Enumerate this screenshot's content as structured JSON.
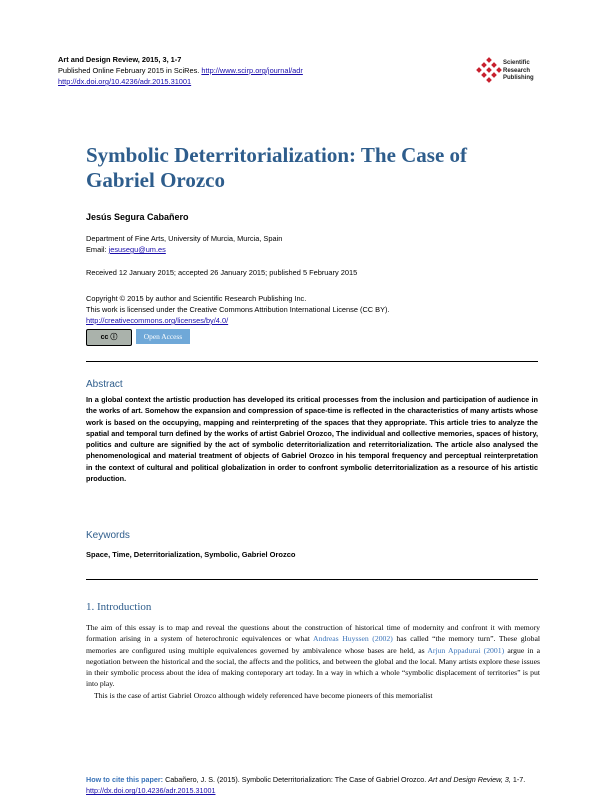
{
  "header": {
    "journal": "Art and Design Review, 2015, 3, 1-7",
    "published": "Published Online February 2015 in SciRes.",
    "journal_url": "http://www.scirp.org/journal/adr",
    "doi_url": "http://dx.doi.org/10.4236/adr.2015.31001"
  },
  "logo": {
    "line1": "Scientific",
    "line2": "Research",
    "line3": "Publishing",
    "color": "#c8202e"
  },
  "title_line1": "Symbolic Deterritorialization: The Case of",
  "title_line2": "Gabriel Orozco",
  "author": "Jesús Segura Cabañero",
  "affiliation": "Department of Fine Arts, University of Murcia, Murcia, Spain",
  "email_label": "Email:",
  "email": "jesusegu@um.es",
  "dates": "Received 12 January 2015; accepted 26 January 2015; published 5 February 2015",
  "copyright": {
    "line1": "Copyright © 2015 by author and Scientific Research Publishing Inc.",
    "line2": "This work is licensed under the Creative Commons Attribution International License (CC BY).",
    "url": "http://creativecommons.org/licenses/by/4.0/"
  },
  "badges": {
    "cc": "cc  ⓘ",
    "open_access": "Open Access"
  },
  "abstract_title": "Abstract",
  "abstract": "In a global context the artistic production has developed its critical processes from the inclusion and participation of audience in the works of art. Somehow the expansion and compression of space-time is reflected in the characteristics of many artists whose work is based on the occupying, mapping and reinterpreting of the spaces that they appropriate. This article tries to analyze the spatial and temporal turn defined by the works of artist Gabriel Orozco, The individual and collective memories, spaces of history, politics and culture are signified by the act of symbolic deterritorialization and reterritorialization. The article also analysed the phenomenological and material treatment of objects of Gabriel Orozco in his temporal frequency and perceptual reinterpretation in the context of cultural and political globalization in order to confront symbolic deterritorialization as a resource of his artistic production.",
  "keywords_title": "Keywords",
  "keywords": "Space, Time, Deterritorialization, Symbolic, Gabriel Orozco",
  "intro_title": "1. Introduction",
  "intro": {
    "p1_a": "The aim of this essay is to map and reveal the questions about the construction of historical time of modernity and confront it with memory formation arising in a system of heterochronic equivalences or what ",
    "p1_cite1": "Andreas Huyssen (2002)",
    "p1_b": " has called “the memory turn”. These global memories are configured using multiple equivalences governed by ambivalence whose bases are held, as ",
    "p1_cite2": "Arjun Appadurai (2001)",
    "p1_c": " argue in a negotiation between the historical and the social, the affects and the politics, and between the global and the local. Many artists explore these issues in their symbolic process about the idea of making conteporary art today. In a way in which a whole “symbolic displacement of territories” is put into play.",
    "p2": "This is the case of artist Gabriel Orozco although widely referenced have become pioneers of this memorialist"
  },
  "footer": {
    "label": "How to cite this paper:",
    "text": " Cabañero, J. S. (2015). Symbolic Deterritorialization: The Case of Gabriel Orozco. ",
    "journal": "Art and Design Review, 3,",
    "pages": " 1-7. ",
    "doi": "http://dx.doi.org/10.4236/adr.2015.31001"
  },
  "colors": {
    "title": "#2e5d8c",
    "link": "#1a0dab",
    "cite": "#3a73b8"
  }
}
